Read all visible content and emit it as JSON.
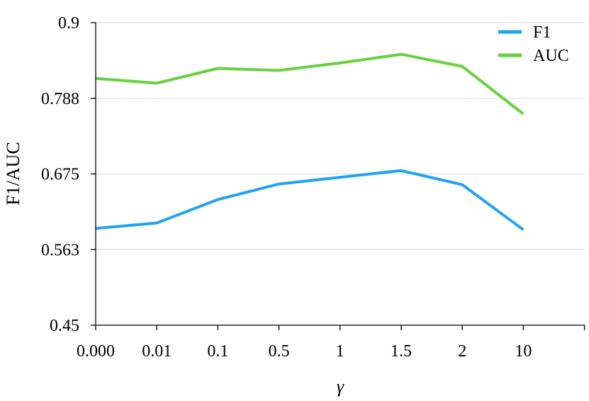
{
  "chart_data": {
    "type": "line",
    "title": "",
    "xlabel": "γ",
    "ylabel": "F1/AUC",
    "categories": [
      "0.000",
      "0.01",
      "0.1",
      "0.5",
      "1",
      "1.5",
      "2",
      "10"
    ],
    "x_tick_labels": [
      "0.000",
      "0.01",
      "0.1",
      "0.5",
      "1",
      "1.5",
      "2",
      "10"
    ],
    "y_tick_labels": [
      "0.45",
      "0.563",
      "0.675",
      "0.788",
      "0.9"
    ],
    "ylim": [
      0.45,
      0.9
    ],
    "grid": true,
    "legend_position": "top-right",
    "series": [
      {
        "name": "F1",
        "color": "#1ea5f0",
        "values": [
          0.594,
          0.602,
          0.637,
          0.66,
          0.67,
          0.68,
          0.659,
          0.592
        ]
      },
      {
        "name": "AUC",
        "color": "#66d23c",
        "values": [
          0.817,
          0.81,
          0.832,
          0.829,
          0.84,
          0.853,
          0.835,
          0.764
        ]
      }
    ]
  }
}
